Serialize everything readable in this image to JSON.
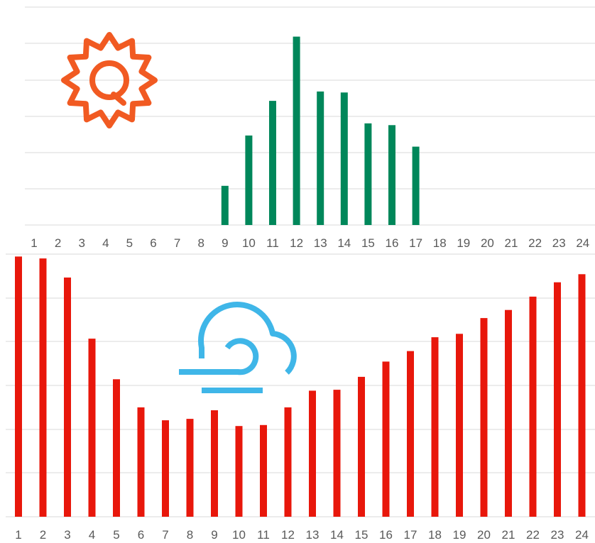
{
  "colors": {
    "solar_bar": "#00875a",
    "wind_bar": "#e8170b",
    "sun_icon": "#f15a22",
    "wind_icon": "#3fb6e8",
    "grid": "#d9d9d9",
    "tick_text": "#595959"
  },
  "icons": {
    "top": "sun-icon",
    "bottom": "wind-cloud-icon"
  },
  "chart_data": [
    {
      "type": "bar",
      "series": [
        {
          "values": [
            0,
            0,
            0,
            0,
            0,
            0,
            0,
            0,
            0.155,
            0.354,
            0.491,
            0.745,
            0.528,
            0.524,
            0.402,
            0.395,
            0.31,
            0,
            0,
            0,
            0,
            0,
            0,
            0
          ]
        }
      ],
      "categories": [
        "1",
        "2",
        "3",
        "4",
        "5",
        "6",
        "7",
        "8",
        "9",
        "10",
        "11",
        "12",
        "13",
        "14",
        "15",
        "16",
        "17",
        "18",
        "19",
        "20",
        "21",
        "22",
        "23",
        "24"
      ],
      "ylim": [
        0,
        0.8
      ],
      "y_tick_labels": "none",
      "grid": true,
      "xlabel": "",
      "ylabel": "",
      "title": ""
    },
    {
      "type": "bar",
      "series": [
        {
          "values": [
            0.545,
            0.541,
            0.501,
            0.373,
            0.288,
            0.229,
            0.202,
            0.205,
            0.223,
            0.19,
            0.192,
            0.229,
            0.264,
            0.266,
            0.293,
            0.325,
            0.347,
            0.376,
            0.383,
            0.416,
            0.433,
            0.461,
            0.491,
            0.508
          ]
        }
      ],
      "categories": [
        "1",
        "2",
        "3",
        "4",
        "5",
        "6",
        "7",
        "8",
        "9",
        "10",
        "11",
        "12",
        "13",
        "14",
        "15",
        "16",
        "17",
        "18",
        "19",
        "20",
        "21",
        "22",
        "23",
        "24"
      ],
      "ylim": [
        0,
        0.55
      ],
      "y_tick_labels": "none",
      "grid": true,
      "xlabel": "",
      "ylabel": "",
      "title": ""
    }
  ]
}
